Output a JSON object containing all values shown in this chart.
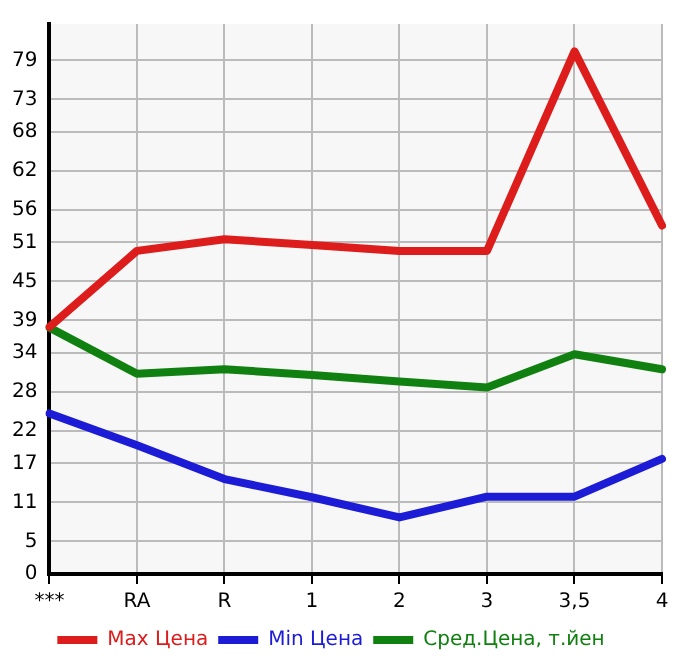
{
  "chart_data": {
    "type": "line",
    "categories": [
      "***",
      "RA",
      "R",
      "1",
      "2",
      "3",
      "3,5",
      "4"
    ],
    "series": [
      {
        "name": "Max Цена",
        "color": "#dd1c1c",
        "values": [
          38,
          49.7,
          51.5,
          50.6,
          49.7,
          49.7,
          80.4,
          53.6
        ]
      },
      {
        "name": "Min Цена",
        "color": "#1c1cd6",
        "values": [
          24.7,
          19.8,
          14.6,
          11.8,
          8.7,
          11.9,
          11.9,
          17.7
        ]
      },
      {
        "name": "Сред.Цена, т.йен",
        "color": "#108010",
        "values": [
          37.9,
          30.8,
          31.5,
          30.6,
          29.6,
          28.7,
          33.8,
          31.5
        ]
      }
    ],
    "ylim": [
      0,
      84.6
    ],
    "yticks": [
      0,
      5,
      11,
      17,
      22,
      28,
      34,
      39,
      45,
      51,
      56,
      62,
      68,
      73,
      79
    ],
    "grid": true,
    "legend": "bottom",
    "marker": "none",
    "line_style": "solid"
  }
}
